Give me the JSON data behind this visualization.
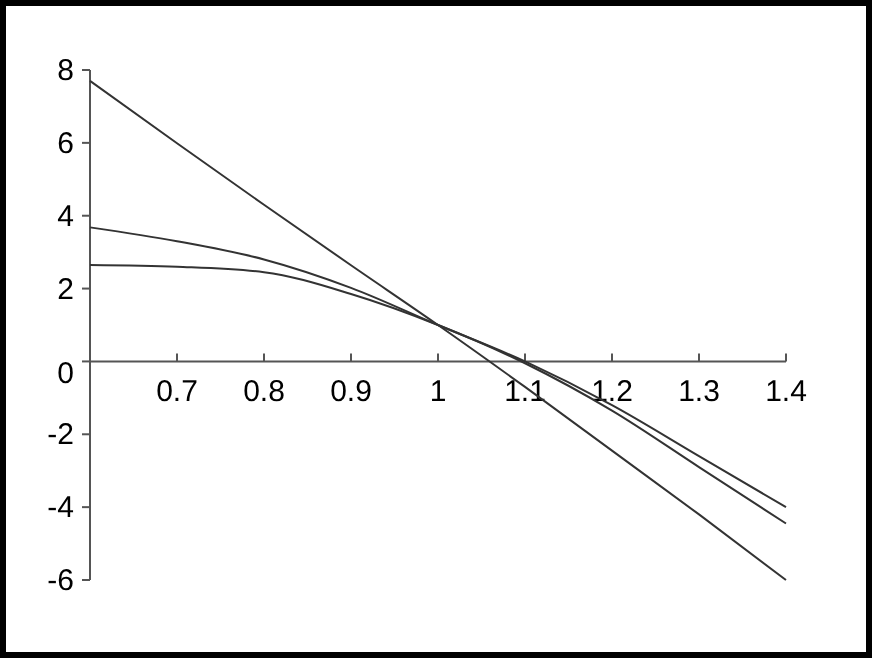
{
  "chart_data": {
    "type": "line",
    "xlim": [
      0.6,
      1.4
    ],
    "ylim": [
      -6,
      8
    ],
    "xticks": [
      0.7,
      0.8,
      0.9,
      1,
      1.1,
      1.2,
      1.3,
      1.4
    ],
    "yticks": [
      -6,
      -4,
      -2,
      0,
      2,
      4,
      6,
      8
    ],
    "grid": false,
    "line_style": "solid",
    "series": [
      {
        "color": "#333333",
        "x": [
          0.6,
          0.7,
          0.8,
          0.9,
          1.0,
          1.1,
          1.2,
          1.3,
          1.4
        ],
        "values": [
          7.7,
          5.99,
          4.3,
          2.64,
          1.0,
          -0.7,
          -2.45,
          -4.2,
          -6.0
        ]
      },
      {
        "color": "#333333",
        "x": [
          0.6,
          0.7,
          0.8,
          0.9,
          1.0,
          1.1,
          1.2,
          1.3,
          1.4
        ],
        "values": [
          3.68,
          3.3,
          2.8,
          2.02,
          1.0,
          0.0,
          -1.2,
          -2.6,
          -4.0
        ]
      },
      {
        "color": "#333333",
        "x": [
          0.6,
          0.7,
          0.8,
          0.9,
          1.0,
          1.1,
          1.2,
          1.3,
          1.4
        ],
        "values": [
          2.65,
          2.6,
          2.45,
          1.85,
          1.0,
          -0.05,
          -1.35,
          -2.9,
          -4.45
        ]
      }
    ]
  }
}
